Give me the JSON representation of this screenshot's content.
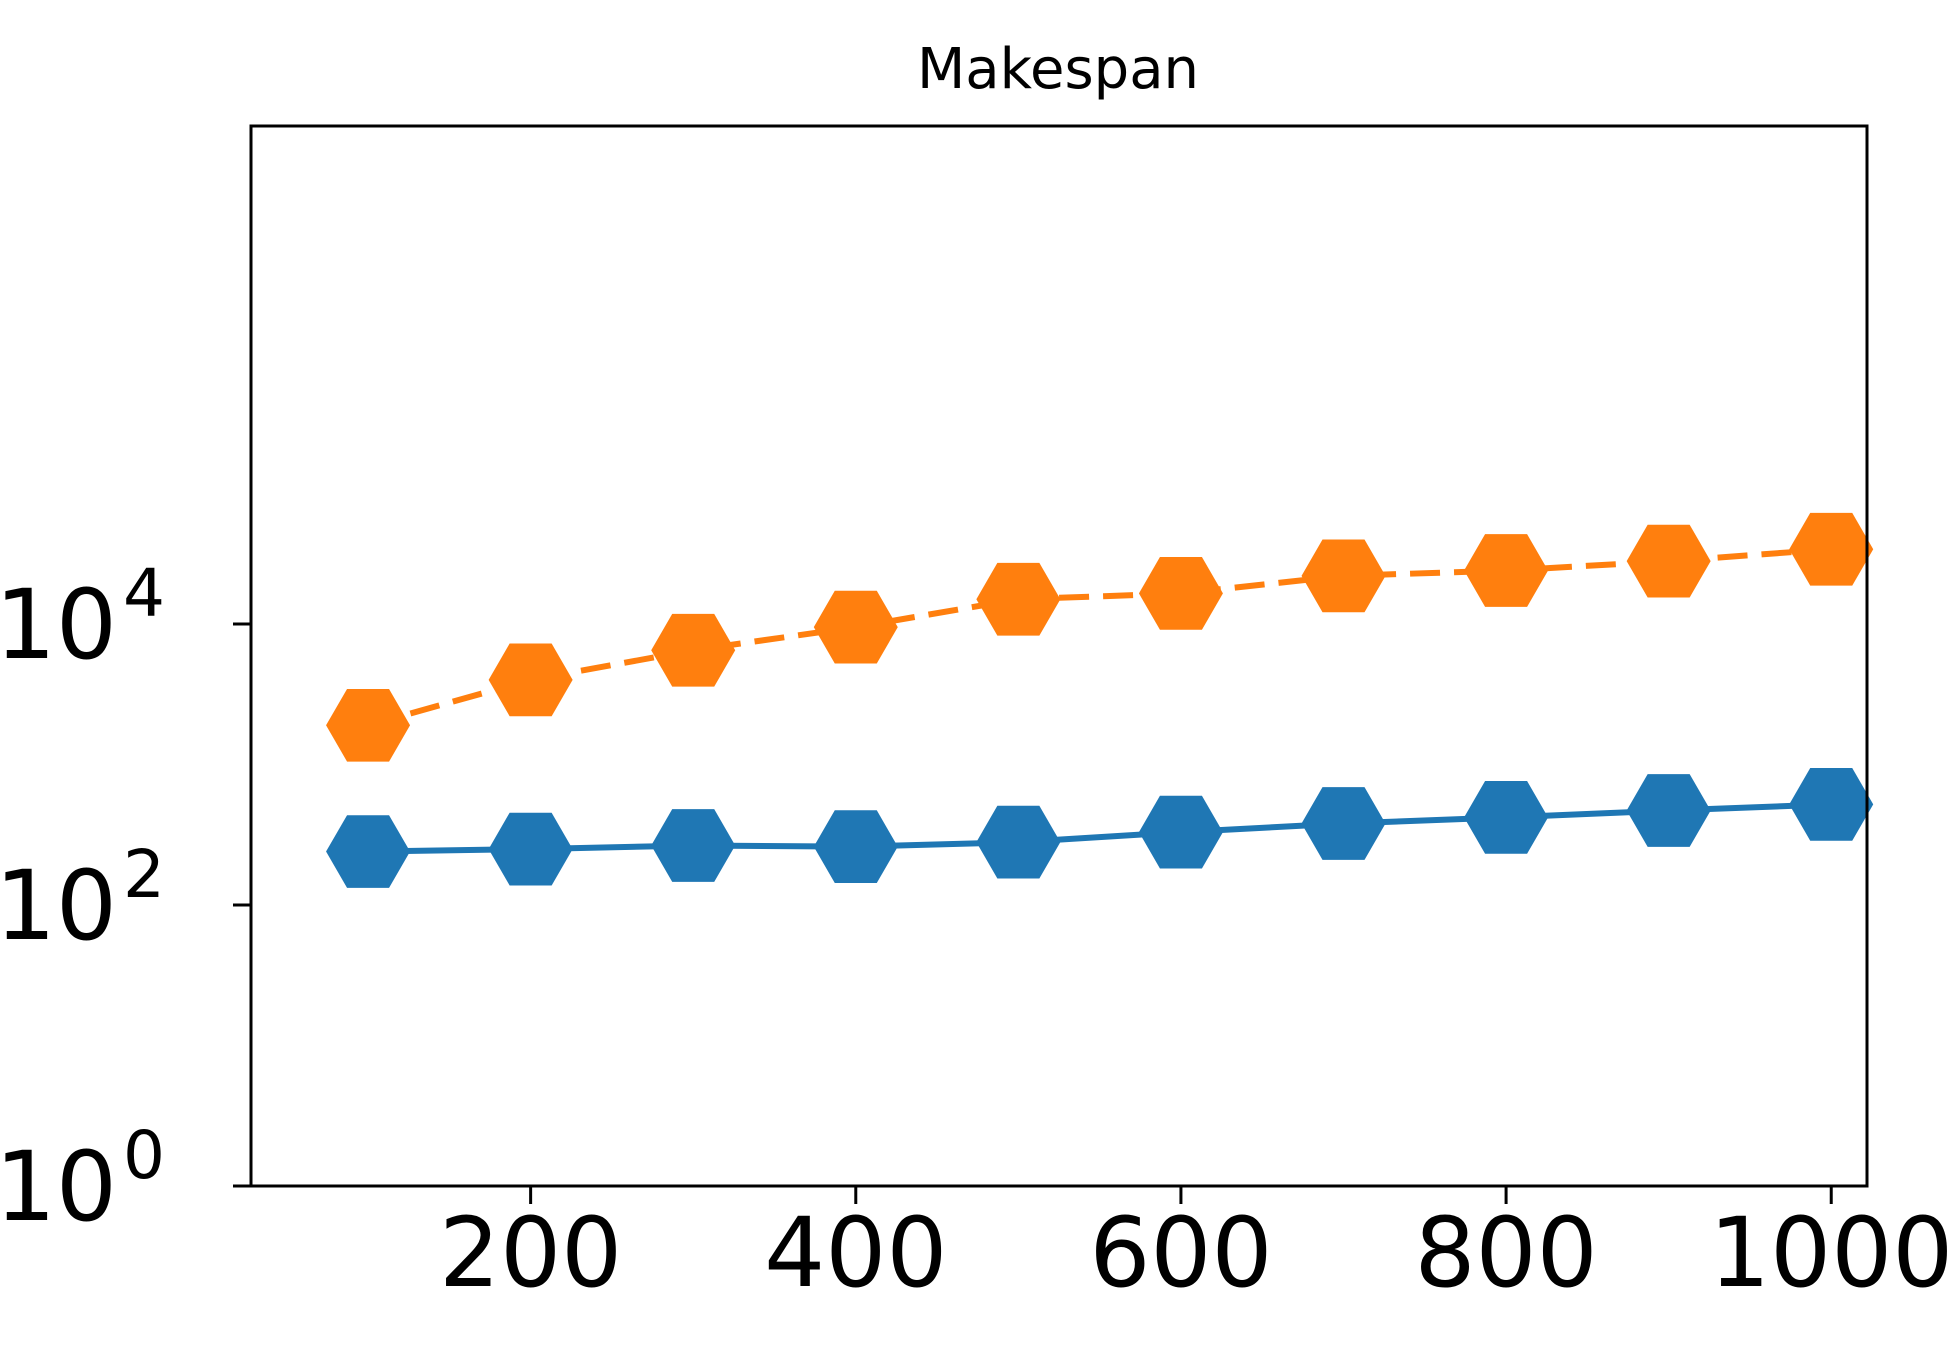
{
  "chart_data": {
    "type": "line",
    "title": "Makespan",
    "xlabel": "",
    "ylabel": "",
    "x": [
      100,
      200,
      300,
      400,
      500,
      600,
      700,
      800,
      900,
      1000
    ],
    "x_ticks": [
      200,
      400,
      600,
      800,
      1000
    ],
    "x_tick_labels": [
      "200",
      "400",
      "600",
      "800",
      "1000"
    ],
    "xlim": [
      28,
      1022
    ],
    "y_scale": "log",
    "ylim": [
      1,
      35000000
    ],
    "y_ticks": [
      {
        "base": "10",
        "exp": "0",
        "value": 1
      },
      {
        "base": "10",
        "exp": "2",
        "value": 100
      },
      {
        "base": "10",
        "exp": "4",
        "value": 10000
      }
    ],
    "grid": false,
    "series": [
      {
        "name": "",
        "color": "#1f77b4",
        "line_style": "solid",
        "marker": "hexagon",
        "values": [
          240,
          250,
          265,
          260,
          280,
          330,
          380,
          420,
          470,
          520
        ]
      },
      {
        "name": "",
        "color": "#ff7f0e",
        "line_style": "dashed",
        "marker": "hexagon",
        "values": [
          1900,
          4000,
          6500,
          9500,
          15000,
          16500,
          22000,
          24000,
          28000,
          34000
        ]
      }
    ]
  }
}
